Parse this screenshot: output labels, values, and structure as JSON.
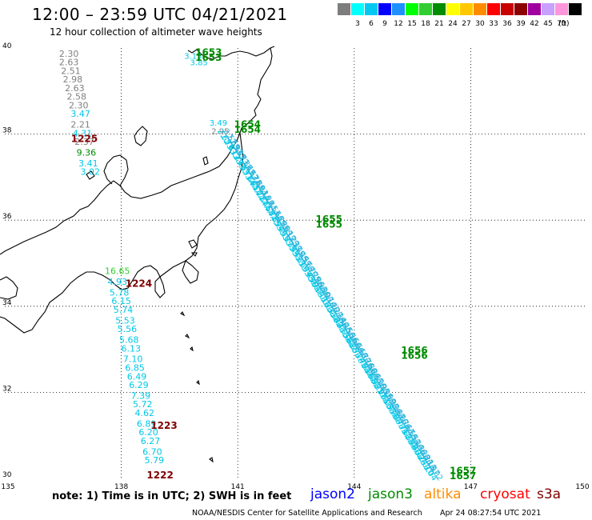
{
  "header": {
    "title": "12:00 – 23:59 UTC 04/21/2021",
    "subtitle": "12 hour collection of altimeter wave heights"
  },
  "scale": {
    "unit": "(ft)",
    "items": [
      {
        "color": "#7d7d7d",
        "label": ""
      },
      {
        "color": "#00ffff",
        "label": "3"
      },
      {
        "color": "#00c8f0",
        "label": "6"
      },
      {
        "color": "#0000ff",
        "label": "9"
      },
      {
        "color": "#1e90ff",
        "label": "12"
      },
      {
        "color": "#00ff00",
        "label": "15"
      },
      {
        "color": "#32cd32",
        "label": "18"
      },
      {
        "color": "#008c00",
        "label": "21"
      },
      {
        "color": "#ffff00",
        "label": "24"
      },
      {
        "color": "#ffc800",
        "label": "27"
      },
      {
        "color": "#ff8c00",
        "label": "30"
      },
      {
        "color": "#ff0000",
        "label": "33"
      },
      {
        "color": "#c80000",
        "label": "36"
      },
      {
        "color": "#8c0000",
        "label": "39"
      },
      {
        "color": "#a000a0",
        "label": "42"
      },
      {
        "color": "#c8a0ff",
        "label": "45"
      },
      {
        "color": "#ff96dc",
        "label": "70"
      },
      {
        "color": "#000000",
        "label": ""
      }
    ]
  },
  "axes": {
    "lon_labels": [
      "135",
      "138",
      "141",
      "144",
      "147",
      "150"
    ],
    "lat_labels": [
      "40",
      "38",
      "36",
      "34",
      "32",
      "30"
    ],
    "lon_min": 135,
    "lon_max": 150,
    "lat_min": 30,
    "lat_max": 40
  },
  "colors": {
    "gray": "#808080",
    "cyan": "#00c8e6",
    "green": "#008c00",
    "darkred": "#800000",
    "lightblue": "#2ab4dc",
    "lightgreen": "#32cd32"
  },
  "track_west_upper": [
    {
      "lon": 136.65,
      "lat": 39.8,
      "value": "2.30",
      "color": "gray"
    },
    {
      "lon": 136.65,
      "lat": 39.6,
      "value": "2.63",
      "color": "gray"
    },
    {
      "lon": 136.7,
      "lat": 39.4,
      "value": "2.51",
      "color": "gray"
    },
    {
      "lon": 136.75,
      "lat": 39.2,
      "value": "2.98",
      "color": "gray"
    },
    {
      "lon": 136.8,
      "lat": 39.0,
      "value": "2.63",
      "color": "gray"
    },
    {
      "lon": 136.85,
      "lat": 38.8,
      "value": "2.58",
      "color": "gray"
    },
    {
      "lon": 136.9,
      "lat": 38.6,
      "value": "2.30",
      "color": "gray"
    },
    {
      "lon": 136.95,
      "lat": 38.4,
      "value": "3.47",
      "color": "cyan"
    },
    {
      "lon": 136.95,
      "lat": 38.15,
      "value": "2.21",
      "color": "gray"
    },
    {
      "lon": 137.0,
      "lat": 37.95,
      "value": "4.31",
      "color": "cyan"
    },
    {
      "lon": 137.05,
      "lat": 37.75,
      "value": "2.37",
      "color": "gray"
    },
    {
      "lon": 137.1,
      "lat": 37.5,
      "value": "9.36",
      "color": "green"
    },
    {
      "lon": 137.15,
      "lat": 37.25,
      "value": "3.41",
      "color": "cyan"
    },
    {
      "lon": 137.2,
      "lat": 37.05,
      "value": "3.02",
      "color": "cyan"
    }
  ],
  "track_west_lower": [
    {
      "lon": 137.9,
      "lat": 34.75,
      "value": "16.65",
      "color": "lightgreen"
    },
    {
      "lon": 137.9,
      "lat": 34.5,
      "value": "4.93",
      "color": "cyan"
    },
    {
      "lon": 137.95,
      "lat": 34.25,
      "value": "5.78",
      "color": "cyan"
    },
    {
      "lon": 138.0,
      "lat": 34.05,
      "value": "6.15",
      "color": "cyan"
    },
    {
      "lon": 138.05,
      "lat": 33.85,
      "value": "5.74",
      "color": "cyan"
    },
    {
      "lon": 138.1,
      "lat": 33.6,
      "value": "5.53",
      "color": "cyan"
    },
    {
      "lon": 138.15,
      "lat": 33.4,
      "value": "5.56",
      "color": "cyan"
    },
    {
      "lon": 138.2,
      "lat": 33.15,
      "value": "5.68",
      "color": "cyan"
    },
    {
      "lon": 138.25,
      "lat": 32.95,
      "value": "6.13",
      "color": "cyan"
    },
    {
      "lon": 138.3,
      "lat": 32.7,
      "value": "7.10",
      "color": "cyan"
    },
    {
      "lon": 138.35,
      "lat": 32.5,
      "value": "6.85",
      "color": "cyan"
    },
    {
      "lon": 138.4,
      "lat": 32.3,
      "value": "6.49",
      "color": "cyan"
    },
    {
      "lon": 138.45,
      "lat": 32.1,
      "value": "6.29",
      "color": "cyan"
    },
    {
      "lon": 138.5,
      "lat": 31.85,
      "value": "7.39",
      "color": "cyan"
    },
    {
      "lon": 138.55,
      "lat": 31.65,
      "value": "5.72",
      "color": "cyan"
    },
    {
      "lon": 138.6,
      "lat": 31.45,
      "value": "4.62",
      "color": "cyan"
    },
    {
      "lon": 138.65,
      "lat": 31.2,
      "value": "6.89",
      "color": "cyan"
    },
    {
      "lon": 138.7,
      "lat": 31.0,
      "value": "6.20",
      "color": "cyan"
    },
    {
      "lon": 138.75,
      "lat": 30.8,
      "value": "6.27",
      "color": "cyan"
    },
    {
      "lon": 138.8,
      "lat": 30.55,
      "value": "6.70",
      "color": "cyan"
    },
    {
      "lon": 138.85,
      "lat": 30.35,
      "value": "5.79",
      "color": "cyan"
    }
  ],
  "track_north_values": [
    {
      "lon": 139.85,
      "lat": 39.75,
      "value": "3.15",
      "color": "cyan"
    },
    {
      "lon": 140.0,
      "lat": 39.6,
      "value": "3.85",
      "color": "cyan"
    },
    {
      "lon": 140.5,
      "lat": 38.2,
      "value": "3.49",
      "color": "cyan"
    },
    {
      "lon": 140.55,
      "lat": 38.0,
      "value": "2.95",
      "color": "gray"
    }
  ],
  "time_labels": [
    {
      "lon": 140.25,
      "lat": 39.82,
      "text": "1653",
      "color": "green"
    },
    {
      "lon": 140.25,
      "lat": 39.7,
      "text": "1653",
      "color": "green"
    },
    {
      "lon": 141.25,
      "lat": 38.15,
      "text": "1654",
      "color": "green"
    },
    {
      "lon": 141.25,
      "lat": 38.03,
      "text": "1654",
      "color": "green"
    },
    {
      "lon": 137.05,
      "lat": 37.82,
      "text": "1225",
      "color": "darkred"
    },
    {
      "lon": 143.35,
      "lat": 35.95,
      "text": "1655",
      "color": "green"
    },
    {
      "lon": 143.35,
      "lat": 35.83,
      "text": "1655",
      "color": "green"
    },
    {
      "lon": 138.45,
      "lat": 34.45,
      "text": "1224",
      "color": "darkred"
    },
    {
      "lon": 145.55,
      "lat": 32.9,
      "text": "1656",
      "color": "green"
    },
    {
      "lon": 145.55,
      "lat": 32.78,
      "text": "1656",
      "color": "green"
    },
    {
      "lon": 139.1,
      "lat": 31.15,
      "text": "1223",
      "color": "darkred"
    },
    {
      "lon": 139.0,
      "lat": 30.0,
      "text": "1222",
      "color": "darkred"
    },
    {
      "lon": 146.8,
      "lat": 30.1,
      "text": "1657",
      "color": "green"
    },
    {
      "lon": 146.8,
      "lat": 29.98,
      "text": "1657",
      "color": "green"
    }
  ],
  "track_east": [
    {
      "values": [
        "2.65",
        "2.76",
        "2.87",
        "3.12",
        "3.29",
        "3.40",
        "3.55",
        "3.71",
        "3.84",
        "3.95",
        "4.10",
        "4.22",
        "4.37",
        "4.46",
        "4.58",
        "4.72",
        "4.85",
        "4.94",
        "5.06",
        "5.18",
        "5.27",
        "5.35",
        "5.44",
        "5.52",
        "5.61",
        "5.66",
        "5.74",
        "5.83",
        "5.90",
        "5.97",
        "6.04",
        "6.11",
        "6.18",
        "6.23",
        "6.31",
        "6.38",
        "6.42",
        "6.47",
        "6.53",
        "6.58",
        "6.62",
        "6.65",
        "6.71",
        "6.74",
        "6.79",
        "6.81",
        "6.86",
        "6.88",
        "6.92",
        "6.95",
        "6.98",
        "7.01",
        "7.03",
        "6.97",
        "6.90",
        "6.84",
        "6.77",
        "6.71",
        "6.62",
        "6.55",
        "6.48",
        "6.40",
        "6.32",
        "6.24",
        "6.17",
        "6.10",
        "6.04"
      ],
      "color": "cyan",
      "start": {
        "lon": 140.6,
        "lat": 37.9
      },
      "end": {
        "lon": 145.9,
        "lat": 30.1
      }
    },
    {
      "values": [
        "2.52",
        "2.69",
        "2.93",
        "3.07",
        "3.21",
        "3.36",
        "3.49",
        "3.62",
        "3.78",
        "3.89",
        "4.03",
        "4.16",
        "4.29",
        "4.41",
        "4.53",
        "4.66",
        "4.79",
        "4.88",
        "5.01",
        "5.12",
        "5.23",
        "5.31",
        "5.40",
        "5.49",
        "5.57",
        "5.64",
        "5.70",
        "5.79",
        "5.86",
        "5.93",
        "6.00",
        "6.07",
        "6.14",
        "6.20",
        "6.27",
        "6.34",
        "6.40",
        "6.45",
        "6.50",
        "6.56",
        "6.60",
        "6.64",
        "6.68",
        "6.72",
        "6.76",
        "6.80",
        "6.84",
        "6.87",
        "6.90",
        "6.93",
        "6.96",
        "6.99",
        "7.02",
        "6.94",
        "6.87",
        "6.80",
        "6.74",
        "6.67",
        "6.59",
        "6.51",
        "6.44",
        "6.36",
        "6.28",
        "6.21",
        "6.13",
        "6.07",
        "6.02"
      ],
      "color": "lightblue",
      "start": {
        "lon": 140.75,
        "lat": 37.9
      },
      "end": {
        "lon": 146.05,
        "lat": 30.1
      }
    }
  ],
  "footer": {
    "note": "note: 1) Time is in UTC; 2) SWH is in feet",
    "legend": [
      {
        "text": "jason2",
        "color": "#0000ff"
      },
      {
        "text": "jason3",
        "color": "#008c00"
      },
      {
        "text": "altika",
        "color": "#ff8c00"
      },
      {
        "text": "cryosat",
        "color": "#ff0000"
      },
      {
        "text": "s3a",
        "color": "#800000"
      }
    ],
    "credit": "NOAA/NESDIS Center for Satellite Applications and Research",
    "timestamp": "Apr 24 08:27:54 UTC 2021"
  }
}
